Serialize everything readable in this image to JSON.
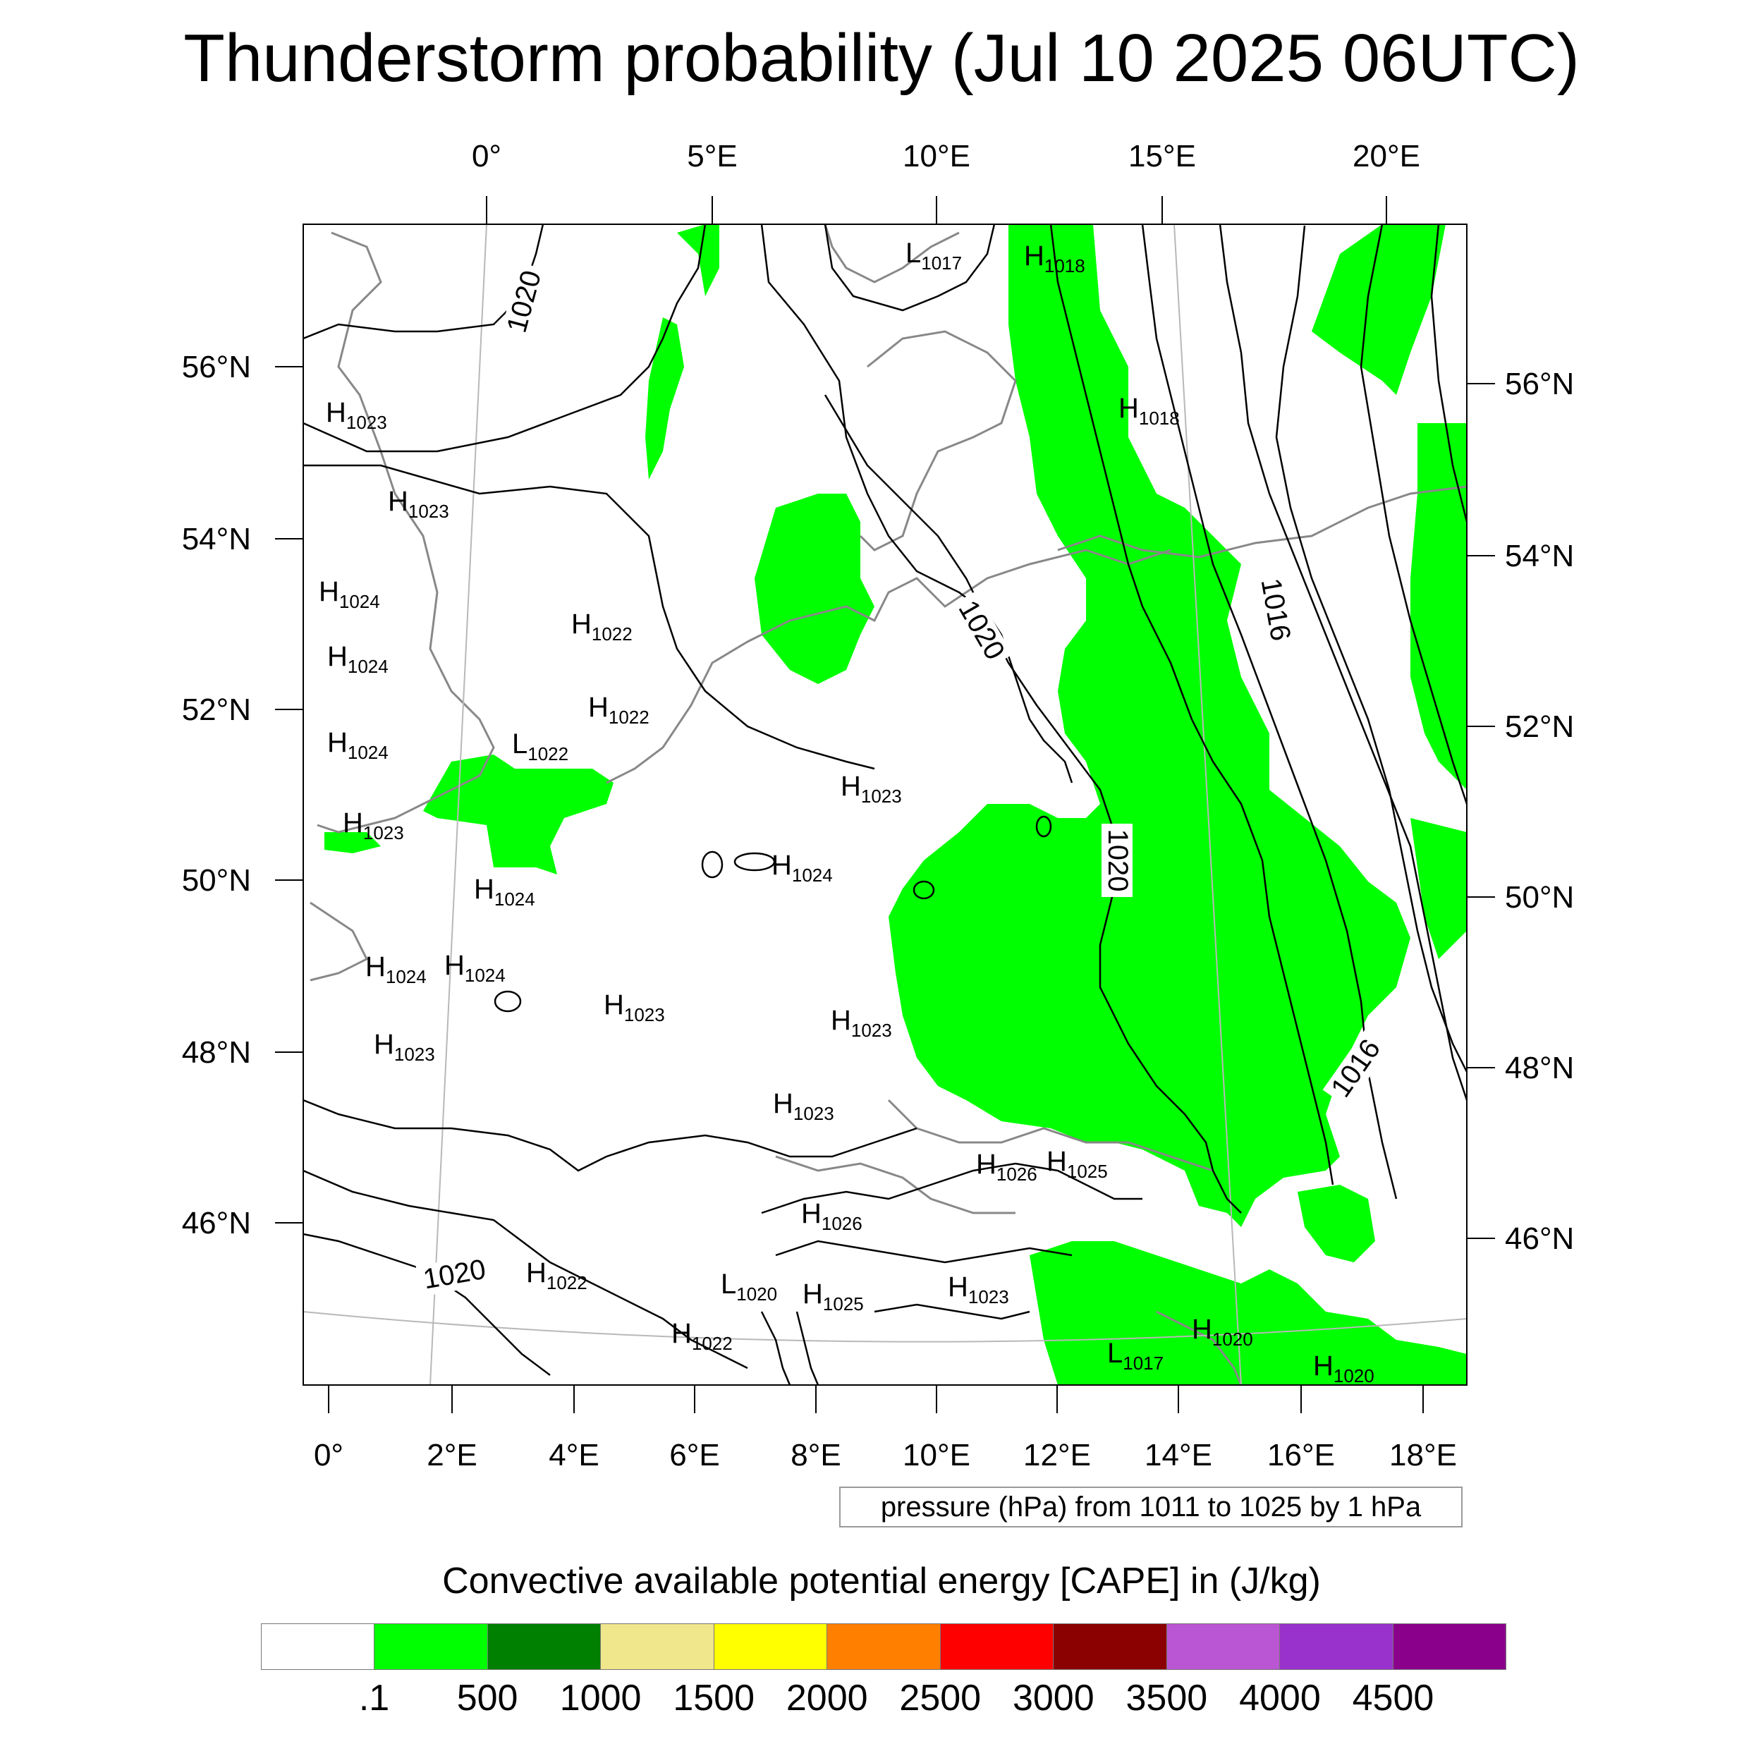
{
  "title": "Thunderstorm probability (Jul 10 2025 06UTC)",
  "map": {
    "top_lon_labels": [
      "0°",
      "5°E",
      "10°E",
      "15°E",
      "20°E"
    ],
    "bottom_lon_labels": [
      "0°",
      "2°E",
      "4°E",
      "6°E",
      "8°E",
      "10°E",
      "12°E",
      "14°E",
      "16°E",
      "18°E"
    ],
    "left_lat_labels": [
      "56°N",
      "54°N",
      "52°N",
      "50°N",
      "48°N",
      "46°N"
    ],
    "right_lat_labels": [
      "56°N",
      "54°N",
      "52°N",
      "50°N",
      "48°N",
      "46°N"
    ],
    "contour_labels": [
      "1020",
      "1020",
      "1020",
      "1016",
      "1016",
      "1020"
    ],
    "pressure_centers": [
      {
        "type": "L",
        "value": "1017"
      },
      {
        "type": "H",
        "value": "1018"
      },
      {
        "type": "H",
        "value": "1023"
      },
      {
        "type": "H",
        "value": "1018"
      },
      {
        "type": "H",
        "value": "1023"
      },
      {
        "type": "H",
        "value": "1024"
      },
      {
        "type": "H",
        "value": "1022"
      },
      {
        "type": "H",
        "value": "1024"
      },
      {
        "type": "H",
        "value": "1022"
      },
      {
        "type": "H",
        "value": "1024"
      },
      {
        "type": "L",
        "value": "1022"
      },
      {
        "type": "H",
        "value": "1023"
      },
      {
        "type": "H",
        "value": "1023"
      },
      {
        "type": "H",
        "value": "1024"
      },
      {
        "type": "H",
        "value": "1024"
      },
      {
        "type": "H",
        "value": "1024"
      },
      {
        "type": "H",
        "value": "1024"
      },
      {
        "type": "H",
        "value": "1023"
      },
      {
        "type": "H",
        "value": "1023"
      },
      {
        "type": "H",
        "value": "1023"
      },
      {
        "type": "H",
        "value": "1023"
      },
      {
        "type": "H",
        "value": "1026"
      },
      {
        "type": "H",
        "value": "1025"
      },
      {
        "type": "H",
        "value": "1026"
      },
      {
        "type": "H",
        "value": "1022"
      },
      {
        "type": "L",
        "value": "1020"
      },
      {
        "type": "H",
        "value": "1025"
      },
      {
        "type": "H",
        "value": "1023"
      },
      {
        "type": "H",
        "value": "1022"
      },
      {
        "type": "H",
        "value": "1020"
      },
      {
        "type": "L",
        "value": "1017"
      },
      {
        "type": "H",
        "value": "1020"
      }
    ]
  },
  "pressure_info": "pressure (hPa) from 1011 to 1025 by 1 hPa",
  "legend": {
    "title": "Convective available potential energy [CAPE] in (J/kg)",
    "colors": [
      "#ffffff",
      "#00ff00",
      "#008000",
      "#f0e68c",
      "#ffff00",
      "#ff8000",
      "#ff0000",
      "#8b0000",
      "#ba55d3",
      "#9932cc",
      "#8b008b"
    ],
    "labels": [
      ".1",
      "500",
      "1000",
      "1500",
      "2000",
      "2500",
      "3000",
      "3500",
      "4000",
      "4500"
    ]
  }
}
